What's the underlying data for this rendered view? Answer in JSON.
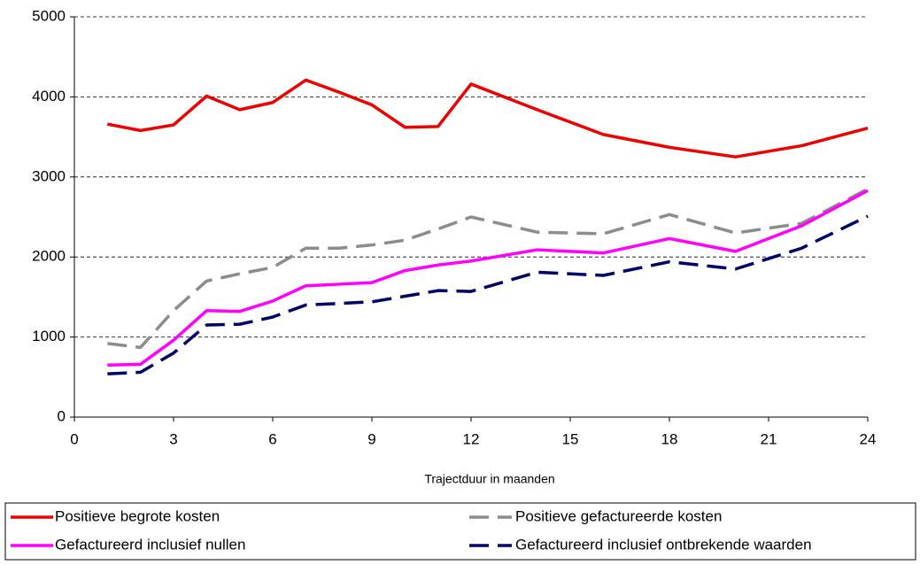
{
  "chart_data": {
    "type": "line",
    "x_label": "Trajectduur in maanden",
    "x": [
      1,
      2,
      3,
      4,
      5,
      6,
      7,
      8,
      9,
      10,
      11,
      12,
      14,
      16,
      18,
      20,
      22,
      24
    ],
    "series": [
      {
        "name": "Positieve begrote kosten",
        "color": "#ee0000",
        "style": "solid",
        "values": [
          3660,
          3580,
          3650,
          4010,
          3840,
          3930,
          4210,
          4060,
          3900,
          3620,
          3630,
          4160,
          3840,
          3530,
          3370,
          3250,
          3390,
          3610
        ]
      },
      {
        "name": "Positieve gefactureerde kosten",
        "color": "#8c8c8c",
        "style": "dashed",
        "values": [
          920,
          870,
          1330,
          1700,
          1790,
          1870,
          2110,
          2110,
          2150,
          2210,
          2350,
          2500,
          2310,
          2290,
          2530,
          2300,
          2420,
          2850
        ]
      },
      {
        "name": "Gefactureerd inclusief nullen",
        "color": "#ff00ff",
        "style": "solid",
        "values": [
          650,
          660,
          960,
          1330,
          1320,
          1450,
          1640,
          1660,
          1680,
          1830,
          1900,
          1950,
          2090,
          2050,
          2230,
          2070,
          2390,
          2830
        ]
      },
      {
        "name": "Gefactureerd inclusief ontbrekende waarden",
        "color": "#000066",
        "style": "dashed",
        "values": [
          540,
          560,
          800,
          1150,
          1160,
          1250,
          1400,
          1420,
          1440,
          1510,
          1580,
          1570,
          1810,
          1770,
          1940,
          1850,
          2110,
          2510
        ]
      }
    ],
    "xlim": [
      0,
      24
    ],
    "xticks": [
      0,
      3,
      6,
      9,
      12,
      15,
      18,
      21,
      24
    ],
    "ylim": [
      0,
      5000
    ],
    "yticks": [
      0,
      1000,
      2000,
      3000,
      4000,
      5000
    ],
    "grid": true,
    "legend_position": "bottom"
  }
}
